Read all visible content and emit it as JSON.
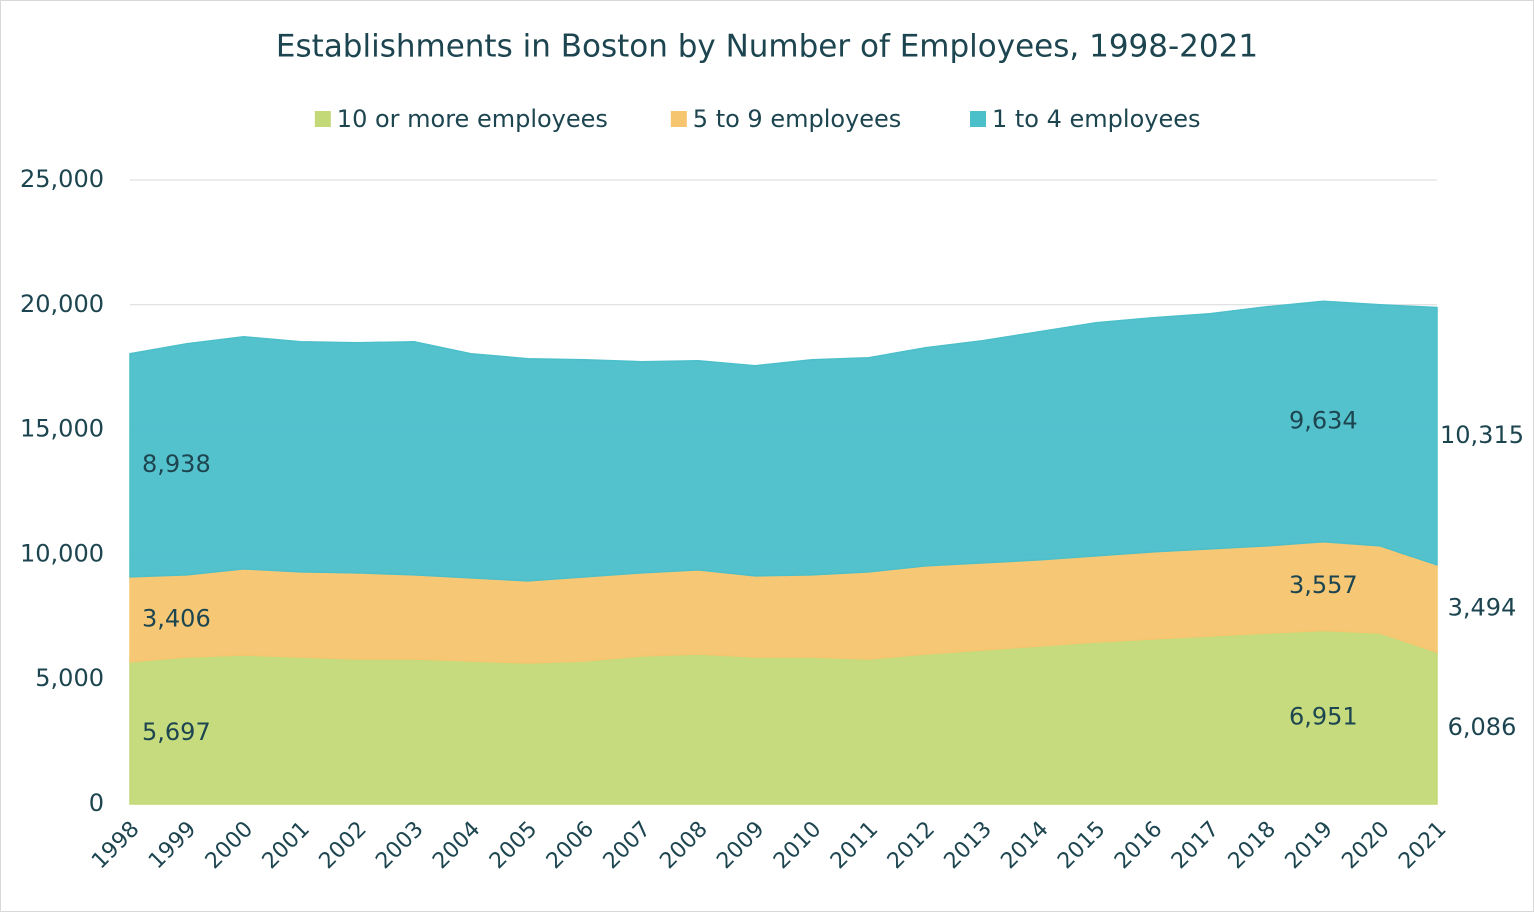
{
  "chart_data": {
    "type": "stacked_area",
    "title": "Establishments in Boston by Number of Employees, 1998-2021",
    "categories": [
      "1998",
      "1999",
      "2000",
      "2001",
      "2002",
      "2003",
      "2004",
      "2005",
      "2006",
      "2007",
      "2008",
      "2009",
      "2010",
      "2011",
      "2012",
      "2013",
      "2014",
      "2015",
      "2016",
      "2017",
      "2018",
      "2019",
      "2020",
      "2021"
    ],
    "series": [
      {
        "name": "10 or more employees",
        "color": "#c3d977",
        "values": [
          5697,
          5890,
          5970,
          5890,
          5810,
          5810,
          5730,
          5650,
          5730,
          5930,
          6010,
          5890,
          5890,
          5810,
          6010,
          6170,
          6330,
          6490,
          6610,
          6730,
          6850,
          6951,
          6850,
          6086
        ],
        "value_labels": [
          "5,697",
          null,
          null,
          null,
          null,
          null,
          null,
          null,
          null,
          null,
          null,
          null,
          null,
          null,
          null,
          null,
          null,
          null,
          null,
          null,
          null,
          "6,951",
          null,
          "6,086"
        ]
      },
      {
        "name": "5 to 9 employees",
        "color": "#f6c56f",
        "values": [
          3406,
          3290,
          3450,
          3410,
          3450,
          3370,
          3330,
          3290,
          3370,
          3330,
          3370,
          3250,
          3290,
          3490,
          3530,
          3490,
          3450,
          3450,
          3490,
          3490,
          3490,
          3557,
          3490,
          3494
        ],
        "value_labels": [
          "3,406",
          null,
          null,
          null,
          null,
          null,
          null,
          null,
          null,
          null,
          null,
          null,
          null,
          null,
          null,
          null,
          null,
          null,
          null,
          null,
          null,
          "3,557",
          null,
          "3,494"
        ]
      },
      {
        "name": "1 to 4 employees",
        "color": "#4bbfca",
        "values": [
          8938,
          9260,
          9300,
          9220,
          9220,
          9340,
          8980,
          8900,
          8700,
          8460,
          8380,
          8420,
          8620,
          8580,
          8740,
          8900,
          9140,
          9340,
          9380,
          9420,
          9580,
          9634,
          9660,
          10315
        ],
        "value_labels": [
          "8,938",
          null,
          null,
          null,
          null,
          null,
          null,
          null,
          null,
          null,
          null,
          null,
          null,
          null,
          null,
          null,
          null,
          null,
          null,
          null,
          null,
          "9,634",
          null,
          "10,315"
        ]
      }
    ],
    "ylim": [
      0,
      25000
    ],
    "yticks": [
      0,
      {
        "value": 5000,
        "label": "5,000"
      },
      {
        "value": 10000,
        "label": "10,000"
      },
      {
        "value": 15000,
        "label": "15,000"
      },
      {
        "value": 20000,
        "label": "20,000"
      },
      {
        "value": 25000,
        "label": "25,000"
      }
    ],
    "grid": true,
    "legend": "top"
  }
}
